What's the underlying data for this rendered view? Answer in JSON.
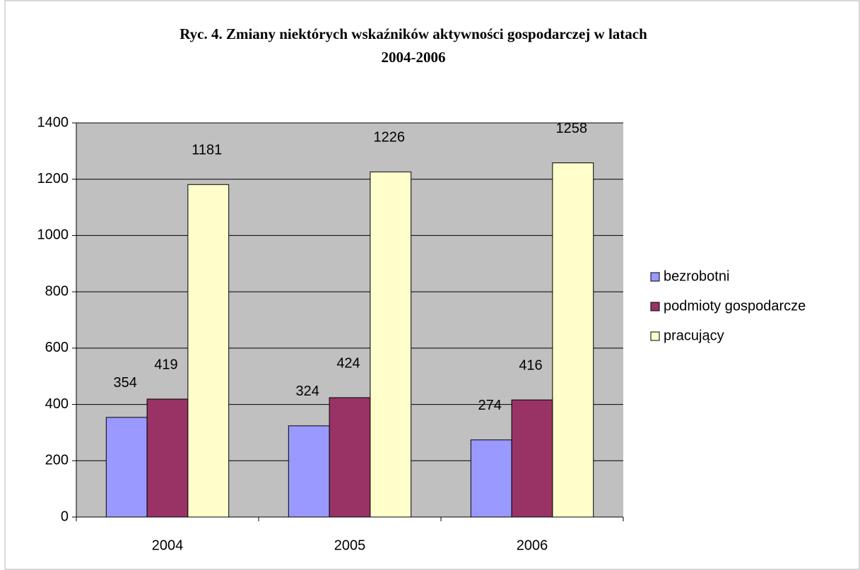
{
  "chart_data": {
    "type": "bar",
    "title": [
      "Ryc. 4.  Zmiany niektórych wskaźników aktywności gospodarczej w latach",
      "2004-2006"
    ],
    "categories": [
      "2004",
      "2005",
      "2006"
    ],
    "series": [
      {
        "name": "bezrobotni",
        "color": "#9999ff",
        "values": [
          354,
          324,
          274
        ]
      },
      {
        "name": "podmioty gospodarcze",
        "color": "#993366",
        "values": [
          419,
          424,
          416
        ]
      },
      {
        "name": "pracujący",
        "color": "#ffffcc",
        "values": [
          1181,
          1226,
          1258
        ]
      }
    ],
    "ylim": [
      0,
      1400
    ],
    "yticks": [
      0,
      200,
      400,
      600,
      800,
      1000,
      1200,
      1400
    ],
    "grid": true,
    "legend": "right"
  }
}
